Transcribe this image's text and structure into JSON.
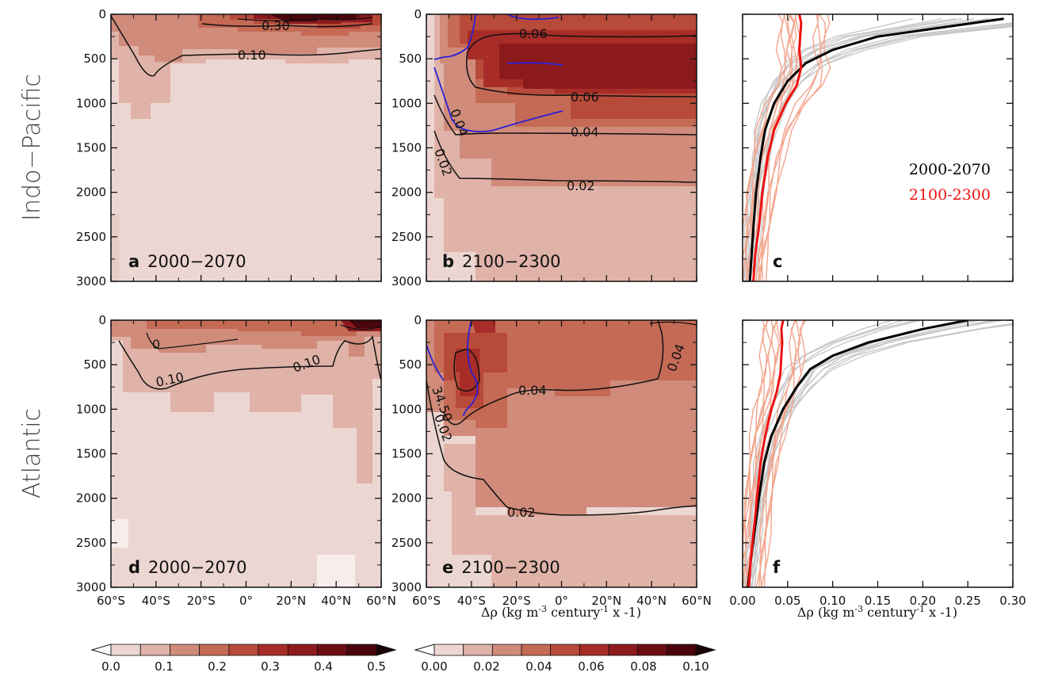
{
  "figure": {
    "row_labels": [
      "Indo−Pacific",
      "Atlantic"
    ],
    "x_unit_label": "Δρ (kg m",
    "x_unit_sup": "-3",
    "x_unit_mid": " century",
    "x_unit_sup2": "-1",
    "x_unit_end": " x -1)",
    "lat_ticks": [
      "60°S",
      "40°S",
      "20°S",
      "0°",
      "20°N",
      "40°N",
      "60°N"
    ],
    "depth_ticks": [
      "0",
      "500",
      "1000",
      "1500",
      "2000",
      "2500",
      "3000"
    ],
    "profile_x_ticks": [
      "0.00",
      "0.05",
      "0.10",
      "0.15",
      "0.20",
      "0.25",
      "0.30"
    ],
    "colorbar_left_ticks": [
      "0.0",
      "0.1",
      "0.2",
      "0.3",
      "0.4",
      "0.5"
    ],
    "colorbar_right_ticks": [
      "0.00",
      "0.02",
      "0.04",
      "0.06",
      "0.08",
      "0.10"
    ],
    "colors": {
      "shades": [
        "#ecd6d2",
        "#e0b3a8",
        "#d08b7a",
        "#c56a55",
        "#b84a3a",
        "#a82d28",
        "#8c1a1d",
        "#6e0d12",
        "#4a050a"
      ],
      "contour": "#111111",
      "isohaline": "#2b1fd6",
      "black_line": "#000000",
      "red_line": "#ee1111",
      "grey_members": "#c8c8c8",
      "salmon_members": "#f4a58c"
    },
    "panels": [
      {
        "letter": "a",
        "period": "2000−2070"
      },
      {
        "letter": "b",
        "period": "2100−2300"
      },
      {
        "letter": "c",
        "period": ""
      },
      {
        "letter": "d",
        "period": "2000−2070"
      },
      {
        "letter": "e",
        "period": "2100−2300"
      },
      {
        "letter": "f",
        "period": ""
      }
    ],
    "contour_labels": {
      "a": [
        "0.30",
        "0.10"
      ],
      "b": [
        "0.06",
        "0.06",
        "0.04",
        "0.04",
        "0.02",
        "0.02"
      ],
      "d": [
        "0",
        "0.10",
        "0.10"
      ],
      "e": [
        "0.04",
        "0.04",
        "0.02",
        "0.02"
      ],
      "e_isohaline": "34.50"
    },
    "legend": {
      "black": "2000-2070",
      "red": "2100-2300"
    }
  },
  "chart_data": [
    {
      "type": "heatmap",
      "panel": "a",
      "title": "",
      "xlabel": "",
      "ylabel": "",
      "x_range": [
        -60,
        60
      ],
      "y_range": [
        0,
        3000
      ],
      "y_inverted": true,
      "colorbar_range": [
        0,
        0.5
      ],
      "contour_levels": [
        0.1,
        0.3
      ],
      "field_description_values": {
        "surface_max": 0.45,
        "upper_500m": 0.15,
        "deep": 0.05
      }
    },
    {
      "type": "heatmap",
      "panel": "b",
      "x_range": [
        -60,
        60
      ],
      "y_range": [
        0,
        3000
      ],
      "y_inverted": true,
      "colorbar_range": [
        0,
        0.1
      ],
      "contour_levels": [
        0.02,
        0.04,
        0.06
      ],
      "isohaline": null
    },
    {
      "type": "line",
      "panel": "c",
      "x_range": [
        0,
        0.3
      ],
      "y_range": [
        0,
        3000
      ],
      "y_inverted": true,
      "series": [
        {
          "name": "2000-2070",
          "x": [
            0.29,
            0.22,
            0.15,
            0.1,
            0.07,
            0.05,
            0.035,
            0.025,
            0.02,
            0.015,
            0.012,
            0.01,
            0.008
          ],
          "y": [
            50,
            150,
            250,
            400,
            550,
            750,
            1000,
            1300,
            1600,
            2000,
            2400,
            2700,
            3000
          ]
        },
        {
          "name": "2100-2300",
          "x": [
            0.063,
            0.065,
            0.064,
            0.063,
            0.065,
            0.06,
            0.048,
            0.035,
            0.028,
            0.022,
            0.018,
            0.014,
            0.012
          ],
          "y": [
            0,
            100,
            250,
            400,
            600,
            800,
            1000,
            1300,
            1600,
            2000,
            2400,
            2700,
            3000
          ]
        }
      ]
    },
    {
      "type": "heatmap",
      "panel": "d",
      "x_range": [
        -60,
        60
      ],
      "y_range": [
        0,
        3000
      ],
      "y_inverted": true,
      "colorbar_range": [
        0,
        0.5
      ],
      "contour_levels": [
        0,
        0.1
      ]
    },
    {
      "type": "heatmap",
      "panel": "e",
      "x_range": [
        -60,
        60
      ],
      "y_range": [
        0,
        3000
      ],
      "y_inverted": true,
      "colorbar_range": [
        0,
        0.1
      ],
      "contour_levels": [
        0.02,
        0.04
      ],
      "isohaline": 34.5
    },
    {
      "type": "line",
      "panel": "f",
      "x_range": [
        0,
        0.3
      ],
      "y_range": [
        0,
        3000
      ],
      "y_inverted": true,
      "series": [
        {
          "name": "2000-2070",
          "x": [
            0.25,
            0.2,
            0.14,
            0.1,
            0.075,
            0.06,
            0.045,
            0.032,
            0.024,
            0.018,
            0.013,
            0.009,
            0.006
          ],
          "y": [
            0,
            100,
            250,
            400,
            550,
            750,
            1000,
            1300,
            1600,
            2000,
            2400,
            2700,
            3000
          ]
        },
        {
          "name": "2100-2300",
          "x": [
            0.045,
            0.043,
            0.044,
            0.043,
            0.042,
            0.038,
            0.032,
            0.025,
            0.02,
            0.016,
            0.012,
            0.009,
            0.007
          ],
          "y": [
            0,
            100,
            250,
            400,
            600,
            800,
            1000,
            1300,
            1600,
            2000,
            2400,
            2700,
            3000
          ]
        }
      ]
    }
  ]
}
